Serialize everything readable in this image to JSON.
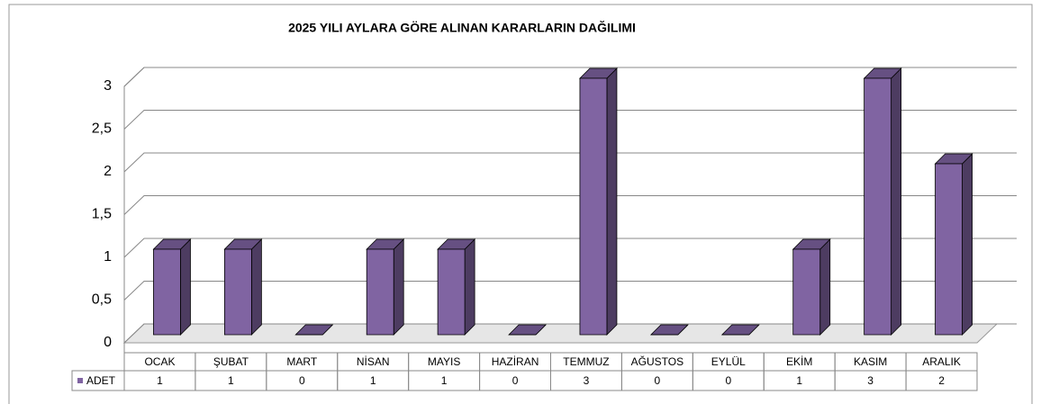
{
  "chart_data": {
    "type": "bar3d",
    "title": "2025 YILI AYLARA GÖRE ALINAN KARARLARIN DAĞILIMI",
    "categories": [
      "OCAK",
      "ŞUBAT",
      "MART",
      "NİSAN",
      "MAYIS",
      "HAZİRAN",
      "TEMMUZ",
      "AĞUSTOS",
      "EYLÜL",
      "EKİM",
      "KASIM",
      "ARALIK"
    ],
    "series": [
      {
        "name": "ADET",
        "color": "#8064a2",
        "values": [
          1,
          1,
          0,
          1,
          1,
          0,
          3,
          0,
          0,
          1,
          3,
          2
        ]
      }
    ],
    "ylim": [
      0,
      3
    ],
    "yticks": [
      0,
      {
        "value": 0.5,
        "label": "0,5"
      },
      1,
      {
        "value": 1.5,
        "label": "1,5"
      },
      2,
      {
        "value": 2.5,
        "label": "2,5"
      },
      3
    ],
    "grid": true,
    "data_table": true
  }
}
